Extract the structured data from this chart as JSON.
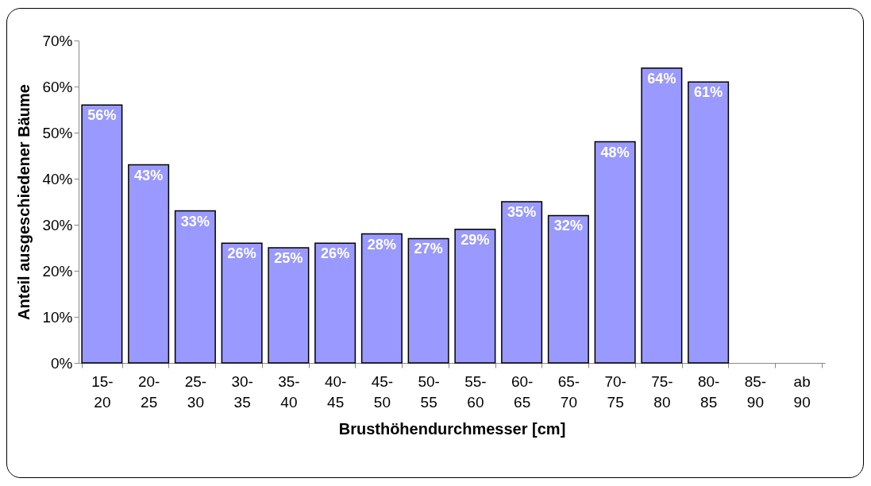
{
  "chart_data": {
    "type": "bar",
    "xlabel": "Brusthöhendurchmesser [cm]",
    "ylabel": "Anteil ausgeschiedener Bäume",
    "categories": [
      "15- 20",
      "20- 25",
      "25- 30",
      "30- 35",
      "35- 40",
      "40- 45",
      "45- 50",
      "50- 55",
      "55- 60",
      "60- 65",
      "65- 70",
      "70- 75",
      "75- 80",
      "80- 85",
      "85- 90",
      "ab 90"
    ],
    "values": [
      56,
      43,
      33,
      26,
      25,
      26,
      28,
      27,
      29,
      35,
      32,
      48,
      64,
      61,
      null,
      null
    ],
    "value_labels": [
      "56%",
      "43%",
      "33%",
      "26%",
      "25%",
      "26%",
      "28%",
      "27%",
      "29%",
      "35%",
      "32%",
      "48%",
      "64%",
      "61%",
      null,
      null
    ],
    "color": "#9999ff",
    "ylim": [
      0,
      70
    ],
    "yticks": [
      {
        "value": 0,
        "label": "0%"
      },
      {
        "value": 10,
        "label": "10%"
      },
      {
        "value": 20,
        "label": "20%"
      },
      {
        "value": 30,
        "label": "30%"
      },
      {
        "value": 40,
        "label": "40%"
      },
      {
        "value": 50,
        "label": "50%"
      },
      {
        "value": 60,
        "label": "60%"
      },
      {
        "value": 70,
        "label": "70%"
      }
    ]
  }
}
